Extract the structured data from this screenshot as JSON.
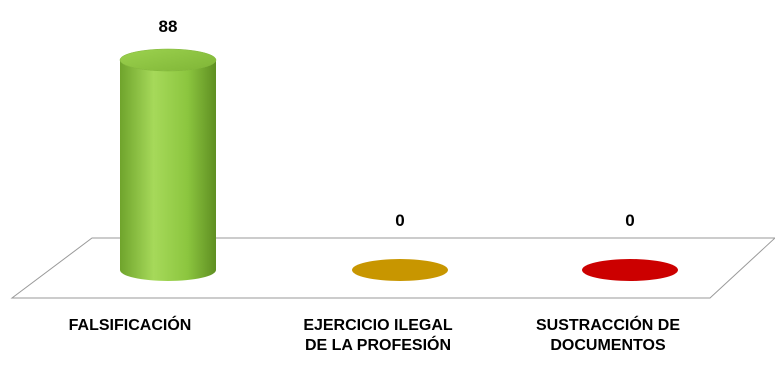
{
  "chart_data": {
    "type": "bar",
    "style": "3d-cylinder",
    "title": "",
    "xlabel": "",
    "ylabel": "",
    "ylim": [
      0,
      88
    ],
    "grid": false,
    "legend": "none",
    "categories": [
      [
        "FALSIFICACIÓN"
      ],
      [
        "EJERCICIO ILEGAL",
        "DE LA PROFESIÓN"
      ],
      [
        "SUSTRACCIÓN DE",
        "DOCUMENTOS"
      ]
    ],
    "values": [
      88,
      0,
      0
    ],
    "value_labels": [
      "88",
      "0",
      "0"
    ],
    "colors": [
      "#8cc63f",
      "#c89600",
      "#cc0000"
    ]
  }
}
